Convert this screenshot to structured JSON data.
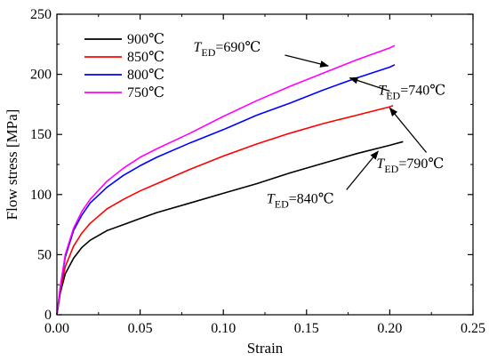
{
  "chart_data": {
    "type": "line",
    "xlabel": "Strain",
    "ylabel": "Flow stress [MPa]",
    "xlim": [
      0,
      0.25
    ],
    "ylim": [
      0,
      250
    ],
    "xticks": [
      "0.00",
      "0.05",
      "0.10",
      "0.15",
      "0.20",
      "0.25"
    ],
    "yticks": [
      "0",
      "50",
      "100",
      "150",
      "200",
      "250"
    ],
    "grid": false,
    "legend_position": "top-left",
    "series": [
      {
        "name": "900℃",
        "color": "#000000",
        "points": [
          [
            0,
            0
          ],
          [
            0.002,
            18
          ],
          [
            0.005,
            34
          ],
          [
            0.01,
            47
          ],
          [
            0.015,
            56
          ],
          [
            0.02,
            62
          ],
          [
            0.03,
            70
          ],
          [
            0.04,
            75
          ],
          [
            0.05,
            80
          ],
          [
            0.06,
            85
          ],
          [
            0.08,
            93
          ],
          [
            0.1,
            101
          ],
          [
            0.12,
            109
          ],
          [
            0.14,
            118
          ],
          [
            0.16,
            126
          ],
          [
            0.18,
            134
          ],
          [
            0.2,
            141
          ],
          [
            0.208,
            144
          ]
        ]
      },
      {
        "name": "850℃",
        "color": "#ff0000",
        "points": [
          [
            0,
            0
          ],
          [
            0.002,
            20
          ],
          [
            0.005,
            40
          ],
          [
            0.01,
            57
          ],
          [
            0.015,
            68
          ],
          [
            0.02,
            76
          ],
          [
            0.03,
            88
          ],
          [
            0.04,
            96
          ],
          [
            0.05,
            103
          ],
          [
            0.06,
            109
          ],
          [
            0.08,
            121
          ],
          [
            0.1,
            132
          ],
          [
            0.12,
            142
          ],
          [
            0.14,
            151
          ],
          [
            0.16,
            159
          ],
          [
            0.18,
            166
          ],
          [
            0.2,
            173
          ],
          [
            0.202,
            174
          ]
        ]
      },
      {
        "name": "800℃",
        "color": "#0000ff",
        "points": [
          [
            0,
            0
          ],
          [
            0.002,
            22
          ],
          [
            0.005,
            48
          ],
          [
            0.01,
            70
          ],
          [
            0.015,
            83
          ],
          [
            0.02,
            93
          ],
          [
            0.03,
            106
          ],
          [
            0.04,
            116
          ],
          [
            0.05,
            124
          ],
          [
            0.06,
            131
          ],
          [
            0.08,
            143
          ],
          [
            0.1,
            154
          ],
          [
            0.12,
            166
          ],
          [
            0.14,
            176
          ],
          [
            0.16,
            187
          ],
          [
            0.18,
            197
          ],
          [
            0.2,
            206
          ],
          [
            0.203,
            208
          ]
        ]
      },
      {
        "name": "750℃",
        "color": "#ff00ff",
        "points": [
          [
            0,
            0
          ],
          [
            0.002,
            23
          ],
          [
            0.005,
            50
          ],
          [
            0.01,
            72
          ],
          [
            0.015,
            86
          ],
          [
            0.02,
            96
          ],
          [
            0.03,
            111
          ],
          [
            0.04,
            122
          ],
          [
            0.05,
            131
          ],
          [
            0.06,
            138
          ],
          [
            0.08,
            151
          ],
          [
            0.1,
            165
          ],
          [
            0.12,
            178
          ],
          [
            0.14,
            190
          ],
          [
            0.16,
            201
          ],
          [
            0.18,
            212
          ],
          [
            0.2,
            222
          ],
          [
            0.203,
            224
          ]
        ]
      }
    ],
    "annotations": [
      {
        "label_main": "T",
        "label_sub": "ED",
        "label_rest": "=690℃",
        "text_at": [
          0.082,
          219
        ],
        "arrow_from": [
          0.137,
          216
        ],
        "arrow_to": [
          0.163,
          207
        ],
        "anchor": "start"
      },
      {
        "label_main": "T",
        "label_sub": "ED",
        "label_rest": "=740℃",
        "text_at": [
          0.193,
          183
        ],
        "arrow_from": [
          0.2,
          186
        ],
        "arrow_to": [
          0.176,
          197
        ],
        "anchor": "start"
      },
      {
        "label_main": "T",
        "label_sub": "ED",
        "label_rest": "=790℃",
        "text_at": [
          0.192,
          122
        ],
        "arrow_from": [
          0.222,
          135
        ],
        "arrow_to": [
          0.2,
          172
        ],
        "anchor": "start"
      },
      {
        "label_main": "T",
        "label_sub": "ED",
        "label_rest": "=840℃",
        "text_at": [
          0.126,
          93
        ],
        "arrow_from": [
          0.174,
          104
        ],
        "arrow_to": [
          0.193,
          136
        ],
        "anchor": "start"
      }
    ]
  }
}
